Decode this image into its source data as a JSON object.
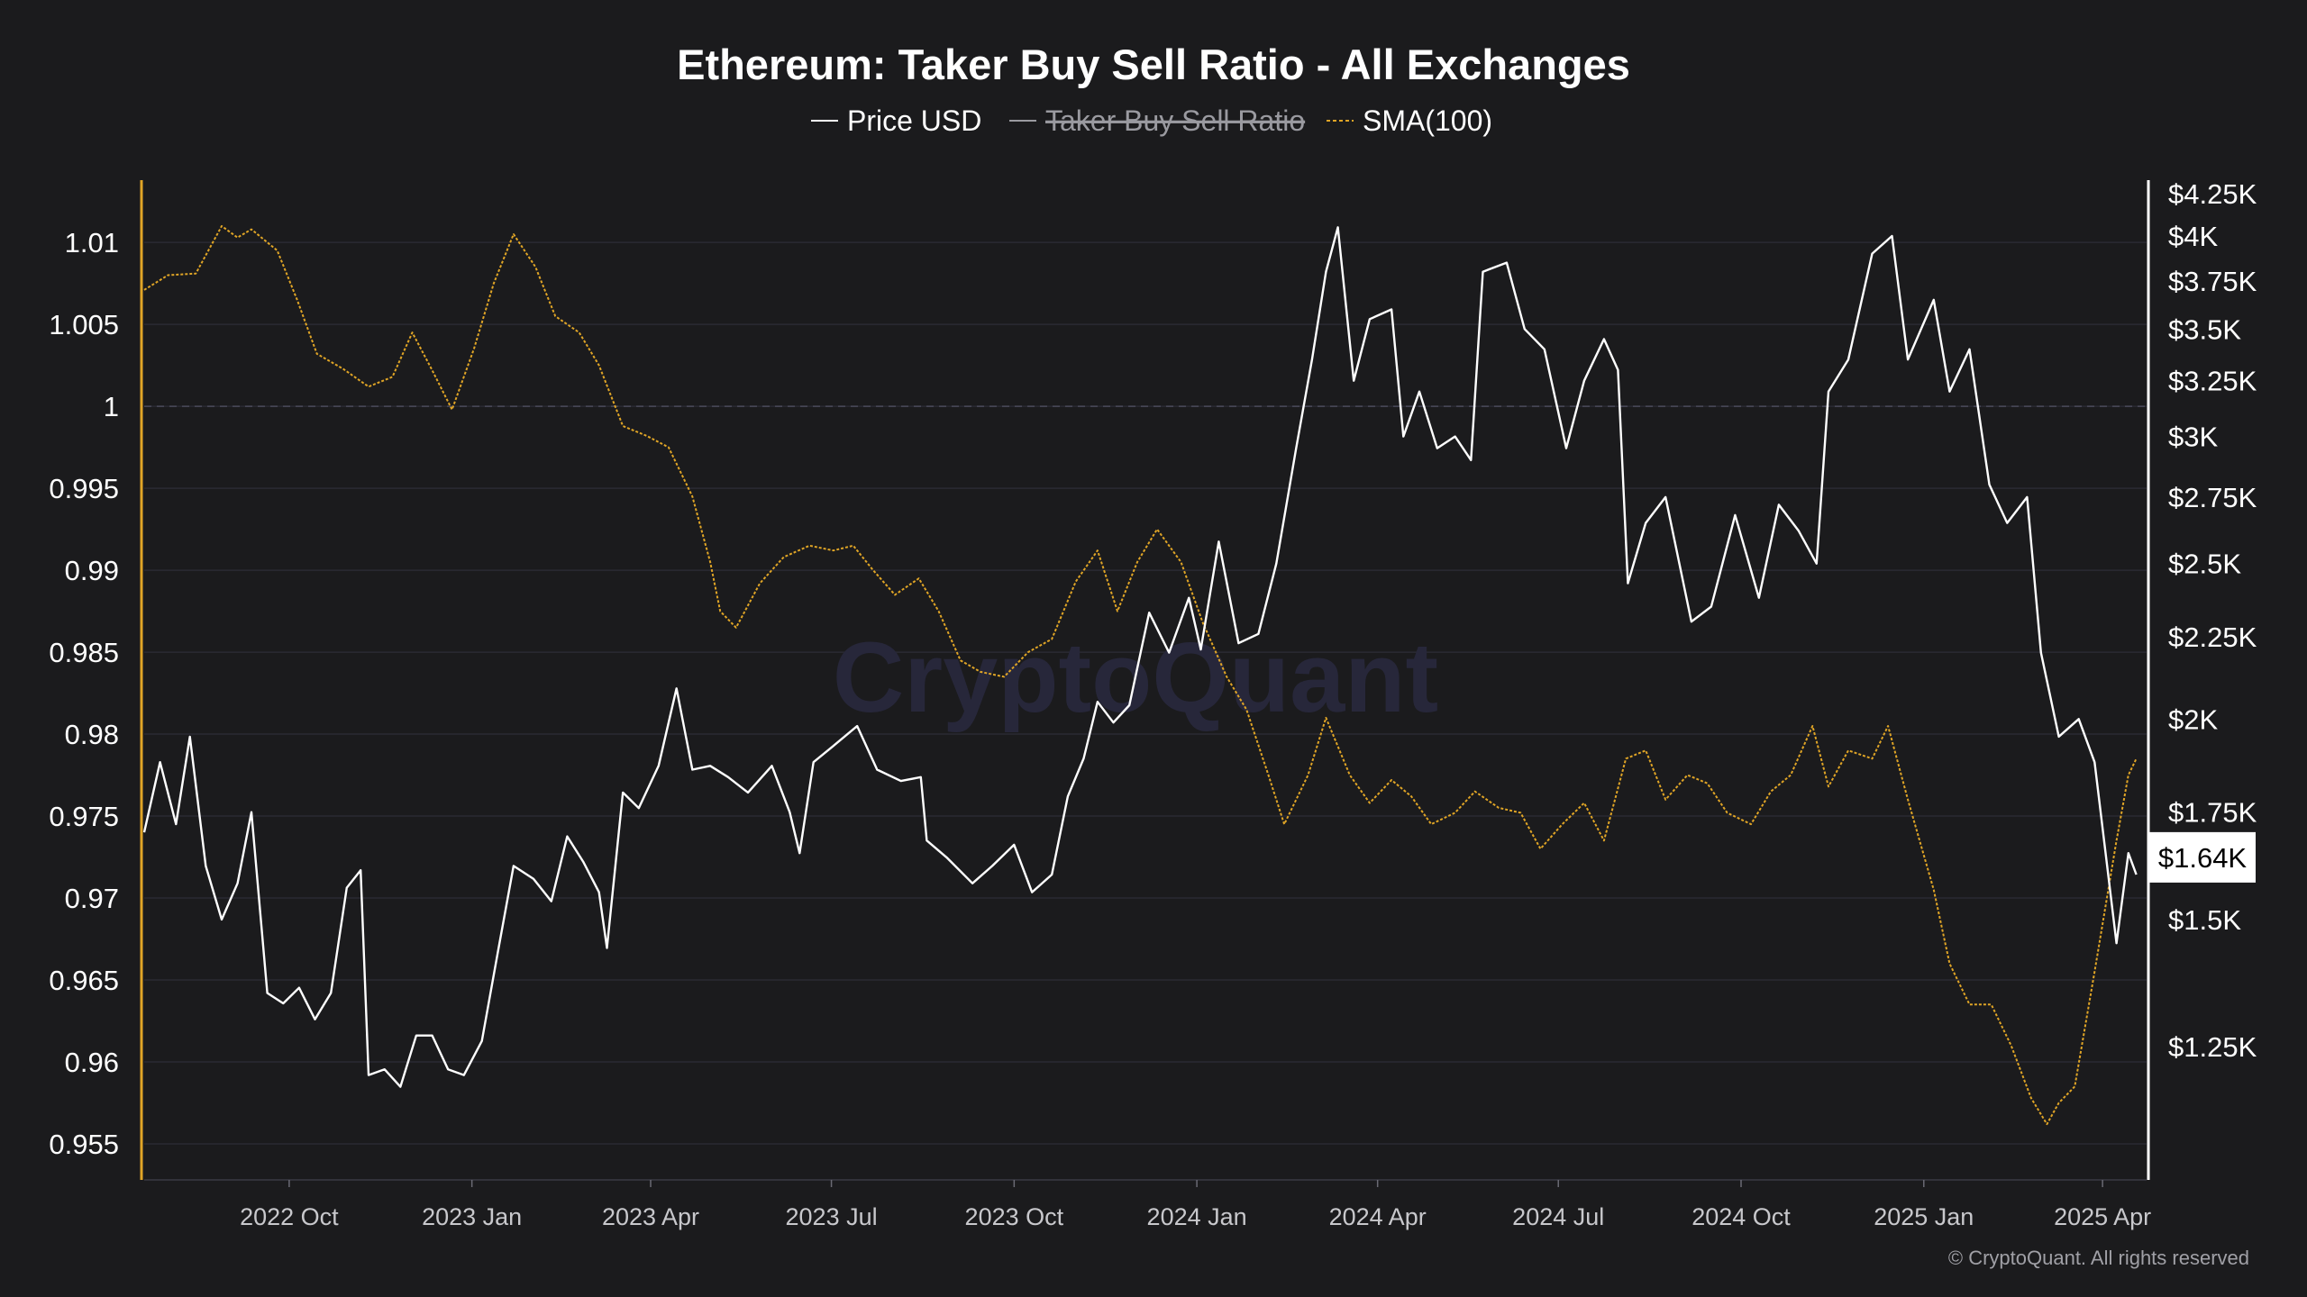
{
  "chart_data": {
    "type": "line",
    "title": "Ethereum: Taker Buy Sell Ratio - All Exchanges",
    "legend": [
      {
        "name": "Price USD",
        "color": "#ffffff",
        "enabled": true
      },
      {
        "name": "Taker Buy Sell Ratio",
        "color": "#9a9aa0",
        "enabled": false
      },
      {
        "name": "SMA(100)",
        "color": "#e0a526",
        "enabled": true,
        "dashed": true
      }
    ],
    "legend_placement": "top-center",
    "x_ticks": [
      "2022 Oct",
      "2023 Jan",
      "2023 Apr",
      "2023 Jul",
      "2023 Oct",
      "2024 Jan",
      "2024 Apr",
      "2024 Jul",
      "2024 Oct",
      "2025 Jan",
      "2025 Apr"
    ],
    "x_range": [
      "2022-07-20",
      "2025-04-20"
    ],
    "left_axis": {
      "ticks": [
        "1.01",
        "1.005",
        "1",
        "0.995",
        "0.99",
        "0.985",
        "0.98",
        "0.975",
        "0.97",
        "0.965",
        "0.96",
        "0.955"
      ],
      "range": [
        0.9528,
        1.0138
      ],
      "color": "#e0a526",
      "reference_line": 1
    },
    "right_axis": {
      "ticks": [
        "$4.25K",
        "$4K",
        "$3.75K",
        "$3.5K",
        "$3.25K",
        "$3K",
        "$2.75K",
        "$2.5K",
        "$2.25K",
        "$2K",
        "$1.75K",
        "$1.5K",
        "$1.25K"
      ],
      "tick_values": [
        4250,
        4000,
        3750,
        3500,
        3250,
        3000,
        2750,
        2500,
        2250,
        2000,
        1750,
        1500,
        1250
      ],
      "scale": "log",
      "color": "#ffffff",
      "current_value_label": "$1.64K",
      "current_value": 1640
    },
    "grid": true,
    "series": [
      {
        "name": "Price USD",
        "axis": "right",
        "color": "#ffffff",
        "points": [
          [
            "2022-07-20",
            1700
          ],
          [
            "2022-07-28",
            1880
          ],
          [
            "2022-08-05",
            1720
          ],
          [
            "2022-08-12",
            1950
          ],
          [
            "2022-08-20",
            1620
          ],
          [
            "2022-08-28",
            1500
          ],
          [
            "2022-09-05",
            1580
          ],
          [
            "2022-09-12",
            1750
          ],
          [
            "2022-09-20",
            1350
          ],
          [
            "2022-09-28",
            1330
          ],
          [
            "2022-10-06",
            1360
          ],
          [
            "2022-10-14",
            1300
          ],
          [
            "2022-10-22",
            1350
          ],
          [
            "2022-10-30",
            1570
          ],
          [
            "2022-11-06",
            1610
          ],
          [
            "2022-11-10",
            1200
          ],
          [
            "2022-11-18",
            1210
          ],
          [
            "2022-11-26",
            1180
          ],
          [
            "2022-12-04",
            1270
          ],
          [
            "2022-12-12",
            1270
          ],
          [
            "2022-12-20",
            1210
          ],
          [
            "2022-12-28",
            1200
          ],
          [
            "2023-01-06",
            1260
          ],
          [
            "2023-01-14",
            1430
          ],
          [
            "2023-01-22",
            1620
          ],
          [
            "2023-02-01",
            1590
          ],
          [
            "2023-02-10",
            1540
          ],
          [
            "2023-02-18",
            1690
          ],
          [
            "2023-02-26",
            1630
          ],
          [
            "2023-03-06",
            1560
          ],
          [
            "2023-03-10",
            1440
          ],
          [
            "2023-03-18",
            1800
          ],
          [
            "2023-03-26",
            1760
          ],
          [
            "2023-04-05",
            1870
          ],
          [
            "2023-04-14",
            2090
          ],
          [
            "2023-04-22",
            1860
          ],
          [
            "2023-05-01",
            1870
          ],
          [
            "2023-05-10",
            1840
          ],
          [
            "2023-05-20",
            1800
          ],
          [
            "2023-06-01",
            1870
          ],
          [
            "2023-06-10",
            1750
          ],
          [
            "2023-06-15",
            1650
          ],
          [
            "2023-06-22",
            1880
          ],
          [
            "2023-07-01",
            1920
          ],
          [
            "2023-07-14",
            1980
          ],
          [
            "2023-07-24",
            1860
          ],
          [
            "2023-08-05",
            1830
          ],
          [
            "2023-08-15",
            1840
          ],
          [
            "2023-08-18",
            1680
          ],
          [
            "2023-08-28",
            1640
          ],
          [
            "2023-09-10",
            1580
          ],
          [
            "2023-09-20",
            1620
          ],
          [
            "2023-10-01",
            1670
          ],
          [
            "2023-10-10",
            1560
          ],
          [
            "2023-10-20",
            1600
          ],
          [
            "2023-10-28",
            1790
          ],
          [
            "2023-11-05",
            1890
          ],
          [
            "2023-11-12",
            2050
          ],
          [
            "2023-11-20",
            1990
          ],
          [
            "2023-11-28",
            2040
          ],
          [
            "2023-12-08",
            2330
          ],
          [
            "2023-12-18",
            2200
          ],
          [
            "2023-12-28",
            2380
          ],
          [
            "2024-01-03",
            2210
          ],
          [
            "2024-01-12",
            2580
          ],
          [
            "2024-01-22",
            2230
          ],
          [
            "2024-02-01",
            2260
          ],
          [
            "2024-02-10",
            2500
          ],
          [
            "2024-02-20",
            2950
          ],
          [
            "2024-02-28",
            3350
          ],
          [
            "2024-03-06",
            3800
          ],
          [
            "2024-03-12",
            4050
          ],
          [
            "2024-03-20",
            3250
          ],
          [
            "2024-03-28",
            3550
          ],
          [
            "2024-04-08",
            3600
          ],
          [
            "2024-04-14",
            3000
          ],
          [
            "2024-04-22",
            3200
          ],
          [
            "2024-05-01",
            2950
          ],
          [
            "2024-05-10",
            3000
          ],
          [
            "2024-05-18",
            2900
          ],
          [
            "2024-05-24",
            3800
          ],
          [
            "2024-06-05",
            3850
          ],
          [
            "2024-06-14",
            3500
          ],
          [
            "2024-06-24",
            3400
          ],
          [
            "2024-07-05",
            2950
          ],
          [
            "2024-07-14",
            3250
          ],
          [
            "2024-07-24",
            3450
          ],
          [
            "2024-07-31",
            3300
          ],
          [
            "2024-08-05",
            2430
          ],
          [
            "2024-08-14",
            2650
          ],
          [
            "2024-08-24",
            2750
          ],
          [
            "2024-09-06",
            2300
          ],
          [
            "2024-09-16",
            2350
          ],
          [
            "2024-09-28",
            2680
          ],
          [
            "2024-10-10",
            2380
          ],
          [
            "2024-10-20",
            2720
          ],
          [
            "2024-10-30",
            2620
          ],
          [
            "2024-11-08",
            2500
          ],
          [
            "2024-11-14",
            3200
          ],
          [
            "2024-11-24",
            3350
          ],
          [
            "2024-12-06",
            3900
          ],
          [
            "2024-12-16",
            4000
          ],
          [
            "2024-12-24",
            3350
          ],
          [
            "2025-01-06",
            3650
          ],
          [
            "2025-01-14",
            3200
          ],
          [
            "2025-01-24",
            3400
          ],
          [
            "2025-02-03",
            2800
          ],
          [
            "2025-02-12",
            2650
          ],
          [
            "2025-02-22",
            2750
          ],
          [
            "2025-03-01",
            2200
          ],
          [
            "2025-03-10",
            1950
          ],
          [
            "2025-03-20",
            2000
          ],
          [
            "2025-03-28",
            1880
          ],
          [
            "2025-04-08",
            1450
          ],
          [
            "2025-04-14",
            1650
          ],
          [
            "2025-04-18",
            1600
          ]
        ]
      },
      {
        "name": "SMA(100)",
        "axis": "left",
        "color": "#e0a526",
        "points": [
          [
            "2022-07-20",
            1.0071
          ],
          [
            "2022-08-01",
            1.008
          ],
          [
            "2022-08-15",
            1.0081
          ],
          [
            "2022-08-28",
            1.011
          ],
          [
            "2022-09-05",
            1.0103
          ],
          [
            "2022-09-12",
            1.0108
          ],
          [
            "2022-09-25",
            1.0095
          ],
          [
            "2022-10-05",
            1.0065
          ],
          [
            "2022-10-15",
            1.0032
          ],
          [
            "2022-10-28",
            1.0023
          ],
          [
            "2022-11-10",
            1.0012
          ],
          [
            "2022-11-22",
            1.0018
          ],
          [
            "2022-12-02",
            1.0045
          ],
          [
            "2022-12-12",
            1.0022
          ],
          [
            "2022-12-22",
            0.9998
          ],
          [
            "2023-01-02",
            1.0035
          ],
          [
            "2023-01-12",
            1.0075
          ],
          [
            "2023-01-22",
            1.0105
          ],
          [
            "2023-02-02",
            1.0085
          ],
          [
            "2023-02-12",
            1.0055
          ],
          [
            "2023-02-24",
            1.0045
          ],
          [
            "2023-03-06",
            1.0025
          ],
          [
            "2023-03-18",
            0.9988
          ],
          [
            "2023-03-30",
            0.9982
          ],
          [
            "2023-04-10",
            0.9975
          ],
          [
            "2023-04-22",
            0.9945
          ],
          [
            "2023-05-01",
            0.9905
          ],
          [
            "2023-05-06",
            0.9875
          ],
          [
            "2023-05-14",
            0.9865
          ],
          [
            "2023-05-26",
            0.9892
          ],
          [
            "2023-06-07",
            0.9908
          ],
          [
            "2023-06-20",
            0.9915
          ],
          [
            "2023-07-02",
            0.9912
          ],
          [
            "2023-07-12",
            0.9915
          ],
          [
            "2023-07-22",
            0.99
          ],
          [
            "2023-08-02",
            0.9885
          ],
          [
            "2023-08-14",
            0.9895
          ],
          [
            "2023-08-24",
            0.9875
          ],
          [
            "2023-09-04",
            0.9845
          ],
          [
            "2023-09-14",
            0.9838
          ],
          [
            "2023-09-26",
            0.9835
          ],
          [
            "2023-10-08",
            0.985
          ],
          [
            "2023-10-20",
            0.9858
          ],
          [
            "2023-11-01",
            0.9893
          ],
          [
            "2023-11-12",
            0.9912
          ],
          [
            "2023-11-22",
            0.9875
          ],
          [
            "2023-12-02",
            0.9905
          ],
          [
            "2023-12-12",
            0.9925
          ],
          [
            "2023-12-24",
            0.9905
          ],
          [
            "2024-01-04",
            0.9868
          ],
          [
            "2024-01-16",
            0.9835
          ],
          [
            "2024-01-26",
            0.9815
          ],
          [
            "2024-02-06",
            0.9775
          ],
          [
            "2024-02-14",
            0.9745
          ],
          [
            "2024-02-26",
            0.9775
          ],
          [
            "2024-03-06",
            0.981
          ],
          [
            "2024-03-18",
            0.9775
          ],
          [
            "2024-03-28",
            0.9758
          ],
          [
            "2024-04-08",
            0.9772
          ],
          [
            "2024-04-18",
            0.9762
          ],
          [
            "2024-04-28",
            0.9745
          ],
          [
            "2024-05-10",
            0.9752
          ],
          [
            "2024-05-20",
            0.9765
          ],
          [
            "2024-06-01",
            0.9755
          ],
          [
            "2024-06-12",
            0.9752
          ],
          [
            "2024-06-22",
            0.973
          ],
          [
            "2024-07-03",
            0.9745
          ],
          [
            "2024-07-14",
            0.9758
          ],
          [
            "2024-07-24",
            0.9735
          ],
          [
            "2024-08-04",
            0.9785
          ],
          [
            "2024-08-14",
            0.979
          ],
          [
            "2024-08-24",
            0.976
          ],
          [
            "2024-09-04",
            0.9775
          ],
          [
            "2024-09-14",
            0.977
          ],
          [
            "2024-09-24",
            0.9752
          ],
          [
            "2024-10-06",
            0.9745
          ],
          [
            "2024-10-16",
            0.9765
          ],
          [
            "2024-10-26",
            0.9775
          ],
          [
            "2024-11-06",
            0.9805
          ],
          [
            "2024-11-14",
            0.9768
          ],
          [
            "2024-11-24",
            0.979
          ],
          [
            "2024-12-06",
            0.9785
          ],
          [
            "2024-12-14",
            0.9805
          ],
          [
            "2024-12-24",
            0.976
          ],
          [
            "2025-01-06",
            0.9705
          ],
          [
            "2025-01-14",
            0.966
          ],
          [
            "2025-01-24",
            0.9635
          ],
          [
            "2025-02-04",
            0.9635
          ],
          [
            "2025-02-14",
            0.961
          ],
          [
            "2025-02-24",
            0.9578
          ],
          [
            "2025-03-04",
            0.9562
          ],
          [
            "2025-03-10",
            0.9575
          ],
          [
            "2025-03-18",
            0.9585
          ],
          [
            "2025-03-28",
            0.9655
          ],
          [
            "2025-04-08",
            0.9735
          ],
          [
            "2025-04-14",
            0.9775
          ],
          [
            "2025-04-18",
            0.9785
          ]
        ]
      }
    ],
    "watermark": "CryptoQuant",
    "credit": "© CryptoQuant. All rights reserved"
  }
}
